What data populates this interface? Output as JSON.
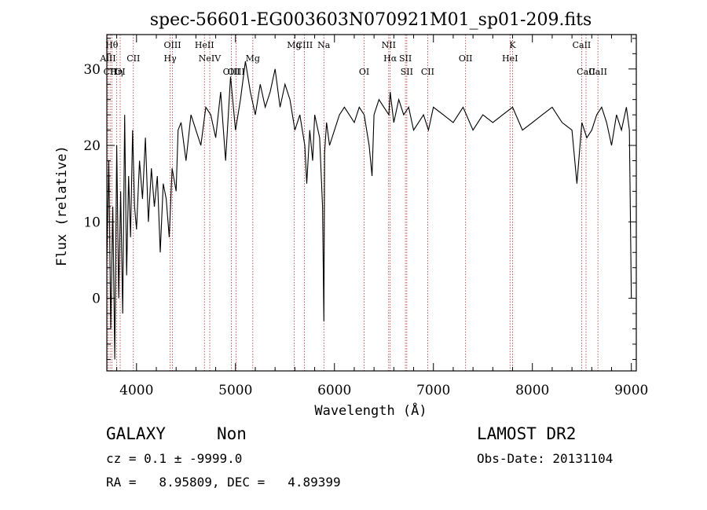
{
  "chart_data": {
    "type": "line",
    "title": "spec-56601-EG003603N070921M01_sp01-209.fits",
    "xlabel": "Wavelength (Å)",
    "ylabel": "Flux (relative)",
    "xlim": [
      3700,
      9050
    ],
    "ylim": [
      -9.5,
      34.5
    ],
    "xticks": [
      4000,
      5000,
      6000,
      7000,
      8000,
      9000
    ],
    "yticks": [
      0,
      10,
      20,
      30
    ],
    "grid": false,
    "series": [
      {
        "x": [
          3700,
          3720,
          3740,
          3760,
          3780,
          3800,
          3820,
          3840,
          3860,
          3880,
          3900,
          3920,
          3940,
          3960,
          3980,
          4000,
          4030,
          4060,
          4090,
          4120,
          4150,
          4180,
          4210,
          4240,
          4270,
          4300,
          4330,
          4360,
          4400,
          4420,
          4450,
          4500,
          4550,
          4600,
          4650,
          4700,
          4750,
          4800,
          4850,
          4900,
          4950,
          5000,
          5050,
          5100,
          5150,
          5200,
          5250,
          5300,
          5350,
          5400,
          5450,
          5500,
          5550,
          5600,
          5650,
          5700,
          5720,
          5750,
          5780,
          5800,
          5850,
          5880,
          5893,
          5900,
          5920,
          5950,
          6000,
          6050,
          6100,
          6150,
          6200,
          6250,
          6300,
          6350,
          6380,
          6400,
          6450,
          6500,
          6550,
          6563,
          6600,
          6650,
          6700,
          6750,
          6800,
          6850,
          6900,
          6950,
          7000,
          7100,
          7200,
          7300,
          7400,
          7500,
          7600,
          7700,
          7800,
          7900,
          8000,
          8100,
          8200,
          8300,
          8400,
          8450,
          8500,
          8550,
          8600,
          8650,
          8700,
          8750,
          8800,
          8850,
          8900,
          8950,
          8980,
          9000
        ],
        "values": [
          5,
          18,
          -4,
          12,
          -8,
          20,
          0,
          14,
          -2,
          24,
          3,
          16,
          8,
          22,
          12,
          9,
          18,
          13,
          21,
          10,
          17,
          12,
          16,
          6,
          15,
          13,
          8,
          17,
          14,
          22,
          23,
          18,
          24,
          22,
          20,
          25,
          24,
          21,
          27,
          18,
          29,
          22,
          26,
          31,
          27,
          24,
          28,
          25,
          27,
          30,
          25,
          28,
          26,
          22,
          24,
          20,
          15,
          22,
          18,
          24,
          21,
          12,
          -3,
          19,
          23,
          20,
          22,
          24,
          25,
          24,
          23,
          25,
          24,
          20,
          16,
          24,
          26,
          25,
          24,
          27,
          23,
          26,
          24,
          25,
          22,
          23,
          24,
          22,
          25,
          24,
          23,
          25,
          22,
          24,
          23,
          24,
          25,
          22,
          23,
          24,
          25,
          23,
          22,
          15,
          23,
          21,
          22,
          24,
          25,
          23,
          20,
          24,
          22,
          25,
          22,
          0
        ]
      }
    ],
    "line_markers": [
      {
        "w": 3712,
        "label": "AlII",
        "row": 2
      },
      {
        "w": 3733,
        "label": "CII",
        "row": 3
      },
      {
        "w": 3750,
        "label": "Hθ",
        "row": 1
      },
      {
        "w": 3798,
        "label": "Hη",
        "row": 3
      },
      {
        "w": 3835,
        "label": "OI",
        "row": 3
      },
      {
        "w": 3968,
        "label": "CII",
        "row": 2
      },
      {
        "w": 4340,
        "label": "Hγ",
        "row": 2
      },
      {
        "w": 4363,
        "label": "OIII",
        "row": 1
      },
      {
        "w": 4686,
        "label": "HeII",
        "row": 1
      },
      {
        "w": 4740,
        "label": "NeIV",
        "row": 2
      },
      {
        "w": 4959,
        "label": "OIII",
        "row": 3
      },
      {
        "w": 5007,
        "label": "OIII",
        "row": 3
      },
      {
        "w": 5175,
        "label": "Mg",
        "row": 2
      },
      {
        "w": 5592,
        "label": "Mg",
        "row": 1
      },
      {
        "w": 5696,
        "label": "CIII",
        "row": 1
      },
      {
        "w": 5893,
        "label": "Na",
        "row": 1
      },
      {
        "w": 6300,
        "label": "OI",
        "row": 3
      },
      {
        "w": 6548,
        "label": "NII",
        "row": 1
      },
      {
        "w": 6563,
        "label": "Hα",
        "row": 2
      },
      {
        "w": 6717,
        "label": "SII",
        "row": 2
      },
      {
        "w": 6731,
        "label": "SII",
        "row": 3
      },
      {
        "w": 6942,
        "label": "CII",
        "row": 3
      },
      {
        "w": 7325,
        "label": "OII",
        "row": 2
      },
      {
        "w": 7774,
        "label": "HeI",
        "row": 2
      },
      {
        "w": 7800,
        "label": "K",
        "row": 1
      },
      {
        "w": 8498,
        "label": "CaII",
        "row": 1
      },
      {
        "w": 8542,
        "label": "CaII",
        "row": 3
      },
      {
        "w": 8662,
        "label": "CaII",
        "row": 3
      }
    ]
  },
  "info": {
    "class": "GALAXY",
    "subclass": "Non",
    "survey": "LAMOST DR2",
    "cz_line": "cz = 0.1 ± -9999.0",
    "obs_date": "Obs-Date: 20131104",
    "radec": "RA =   8.95809, DEC =   4.89399"
  }
}
